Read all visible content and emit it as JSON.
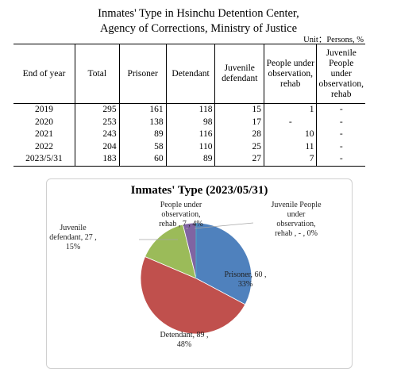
{
  "title_line1": "Inmates' Type in Hsinchu  Detention Center,",
  "title_line2": "Agency of Corrections, Ministry of Justice",
  "unit": "Unit：Persons, %",
  "table": {
    "headers": [
      "End of year",
      "Total",
      "Prisoner",
      "Detendant",
      "Juvenile defendant",
      "People under observation, rehab",
      "Juvenile People under observation, rehab"
    ],
    "rows": [
      [
        "2019",
        "295",
        "161",
        "118",
        "15",
        "1",
        "-"
      ],
      [
        "2020",
        "253",
        "138",
        "98",
        "17",
        "-",
        "-"
      ],
      [
        "2021",
        "243",
        "89",
        "116",
        "28",
        "10",
        "-"
      ],
      [
        "2022",
        "204",
        "58",
        "110",
        "25",
        "11",
        "-"
      ],
      [
        "2023/5/31",
        "183",
        "60",
        "89",
        "27",
        "7",
        "-"
      ]
    ]
  },
  "chart_data": {
    "type": "pie",
    "title": "Inmates' Type (2023/05/31)",
    "slices": [
      {
        "name": "Prisoner",
        "value": 60,
        "percent": "33%",
        "color": "#4f81bd"
      },
      {
        "name": "Detendant",
        "value": 89,
        "percent": "48%",
        "color": "#c0504d"
      },
      {
        "name": "Juvenile defendant",
        "value": 27,
        "percent": "15%",
        "color": "#9bbb59"
      },
      {
        "name": "People under observation, rehab",
        "value": 7,
        "percent": "4%",
        "color": "#8064a2"
      },
      {
        "name": "Juvenile People under observation, rehab",
        "value": 0,
        "percent": "0%",
        "color": "#4bacc6"
      }
    ],
    "labels": {
      "prisoner": "Prisoner, 60 ,\n33%",
      "detendant": "Detendant, 89 ,\n48%",
      "juvenile_defendant": "Juvenile\ndefendant, 27 ,\n15%",
      "people_obs": "People under\nobservation,\nrehab , 7 , 4%",
      "juvenile_people_obs": "Juvenile People\nunder\nobservation,\nrehab , - , 0%"
    }
  }
}
